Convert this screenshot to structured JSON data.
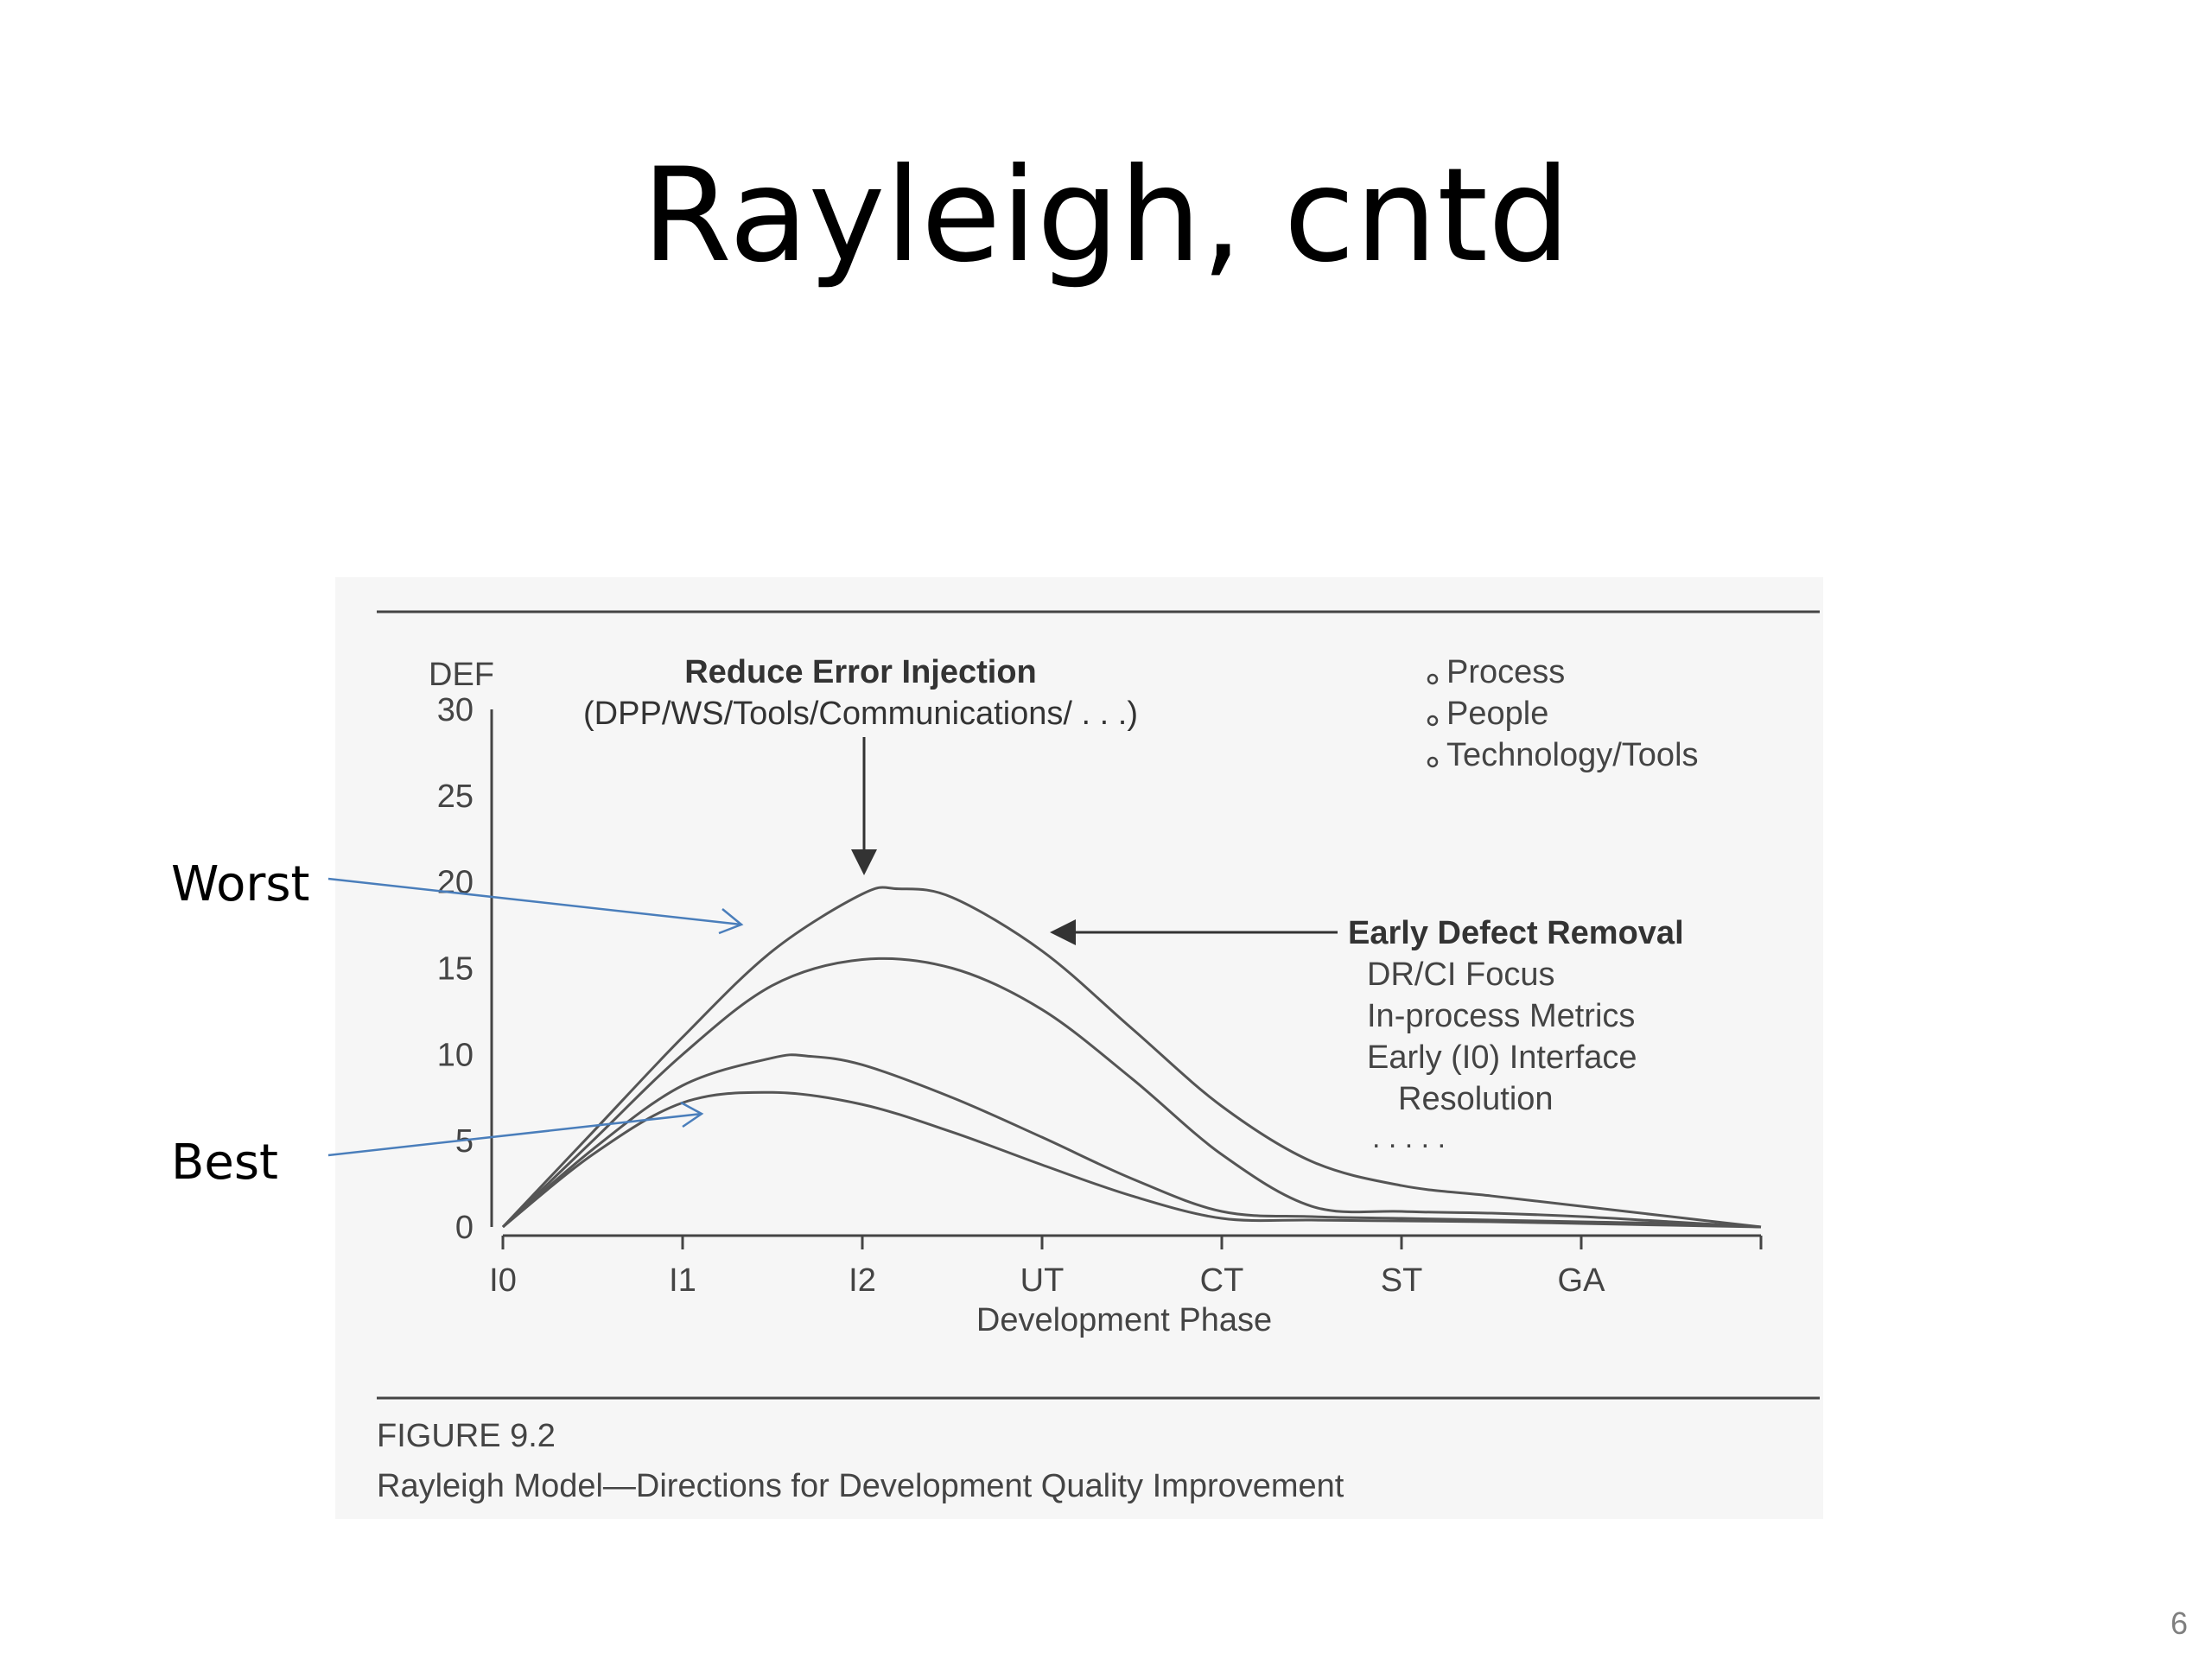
{
  "slide": {
    "title": "Rayleigh, cntd",
    "page_number": "6"
  },
  "annotations": {
    "worst_label": "Worst",
    "best_label": "Best",
    "arrow_color": "#4a7ebb"
  },
  "figure": {
    "caption_number": "FIGURE 9.2",
    "caption_title": "Rayleigh Model—Directions for Development Quality Improvement",
    "callout_injection_title": "Reduce Error Injection",
    "callout_injection_subtitle": "(DPP/WS/Tools/Communications/ . . .)",
    "bullets": [
      "Process",
      "People",
      "Technology/Tools"
    ],
    "callout_removal_title": "Early Defect Removal",
    "callout_removal_items": [
      "DR/CI Focus",
      "In-process Metrics",
      "Early (I0) Interface",
      "Resolution",
      ". . . . ."
    ]
  },
  "chart_data": {
    "type": "line",
    "ylabel": "DEF",
    "xlabel": "Development Phase",
    "ylim": [
      0,
      30
    ],
    "yticks": [
      30,
      25,
      20,
      15,
      10,
      5,
      0
    ],
    "x_categories": [
      "I0",
      "I1",
      "I2",
      "UT",
      "CT",
      "ST",
      "GA"
    ],
    "xlim": [
      0,
      7
    ],
    "series": [
      {
        "values": [
          [
            0,
            0
          ],
          [
            0.5,
            5.5
          ],
          [
            1,
            11
          ],
          [
            1.5,
            16
          ],
          [
            2,
            19.3
          ],
          [
            2.2,
            19.6
          ],
          [
            2.5,
            19.1
          ],
          [
            3,
            16
          ],
          [
            3.5,
            11.5
          ],
          [
            4,
            7
          ],
          [
            4.5,
            3.8
          ],
          [
            5,
            2.4
          ],
          [
            5.5,
            1.8
          ],
          [
            6,
            1.2
          ],
          [
            6.5,
            0.6
          ],
          [
            7,
            0
          ]
        ]
      },
      {
        "values": [
          [
            0,
            0
          ],
          [
            0.5,
            5
          ],
          [
            1,
            10
          ],
          [
            1.5,
            14
          ],
          [
            2,
            15.5
          ],
          [
            2.5,
            15
          ],
          [
            3,
            12.6
          ],
          [
            3.5,
            8.6
          ],
          [
            4,
            4.2
          ],
          [
            4.5,
            1.2
          ],
          [
            5,
            0.9
          ],
          [
            5.5,
            0.8
          ],
          [
            6,
            0.6
          ],
          [
            6.5,
            0.3
          ],
          [
            7,
            0
          ]
        ]
      },
      {
        "values": [
          [
            0,
            0
          ],
          [
            0.5,
            4.5
          ],
          [
            1,
            8.2
          ],
          [
            1.5,
            9.8
          ],
          [
            1.7,
            9.9
          ],
          [
            2,
            9.4
          ],
          [
            2.5,
            7.5
          ],
          [
            3,
            5.2
          ],
          [
            3.5,
            2.8
          ],
          [
            4,
            0.9
          ],
          [
            4.5,
            0.6
          ],
          [
            5,
            0.5
          ],
          [
            5.5,
            0.4
          ],
          [
            6,
            0.3
          ],
          [
            6.5,
            0.2
          ],
          [
            7,
            0
          ]
        ]
      },
      {
        "values": [
          [
            0,
            0
          ],
          [
            0.5,
            4.2
          ],
          [
            1,
            7.2
          ],
          [
            1.5,
            7.8
          ],
          [
            2,
            7.1
          ],
          [
            2.5,
            5.5
          ],
          [
            3,
            3.6
          ],
          [
            3.5,
            1.8
          ],
          [
            4,
            0.5
          ],
          [
            4.5,
            0.4
          ],
          [
            5,
            0.35
          ],
          [
            5.5,
            0.3
          ],
          [
            6,
            0.2
          ],
          [
            6.5,
            0.1
          ],
          [
            7,
            0
          ]
        ]
      }
    ]
  }
}
